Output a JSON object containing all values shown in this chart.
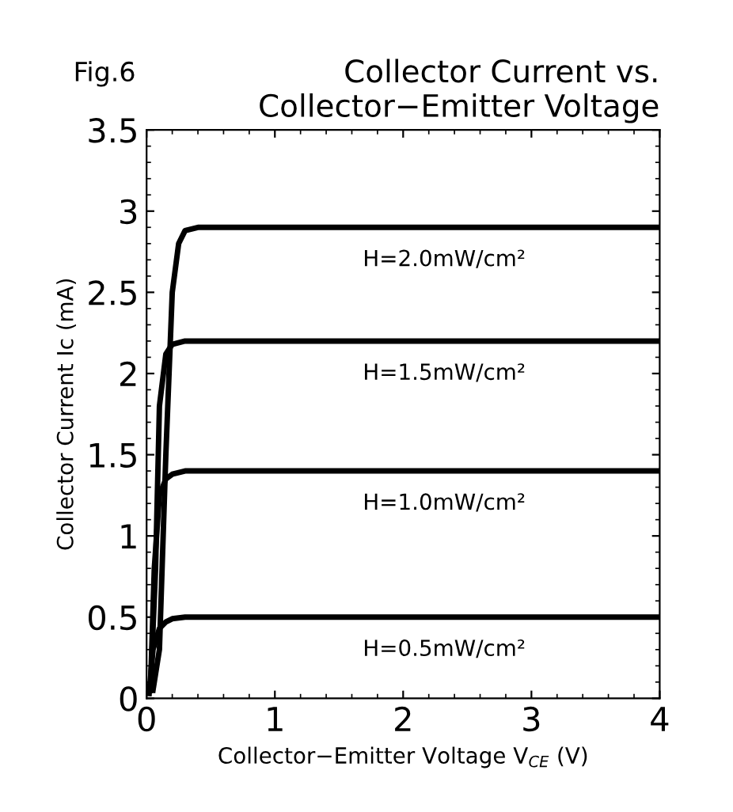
{
  "chart_data": {
    "type": "line",
    "title": "Collector Current vs.\nCollector−Emitter Voltage",
    "xlabel": "Collector−Emitter Voltage V$_{CE}$ (V)",
    "ylabel": "Collector Current Ic (mA)",
    "annotations": [
      "Fig.6"
    ],
    "series": [
      {
        "name": "H=2.0mW/cm²",
        "color": "#000000",
        "x": [
          0.05,
          0.1,
          0.15,
          0.2,
          0.25,
          0.3,
          0.4,
          4
        ],
        "values": [
          0.05,
          0.3,
          1.5,
          2.5,
          2.8,
          2.88,
          2.9,
          2.9
        ]
      },
      {
        "name": "H=1.5mW/cm²",
        "color": "#000000",
        "x": [
          0.03,
          0.07,
          0.1,
          0.15,
          0.2,
          0.3,
          4
        ],
        "values": [
          0.05,
          0.8,
          1.8,
          2.12,
          2.18,
          2.2,
          2.2
        ]
      },
      {
        "name": "H=1.0mW/cm²",
        "color": "#000000",
        "x": [
          0.03,
          0.06,
          0.1,
          0.15,
          0.2,
          0.3,
          4
        ],
        "values": [
          0.05,
          0.8,
          1.25,
          1.35,
          1.38,
          1.4,
          1.4
        ]
      },
      {
        "name": "H=0.5mW/cm²",
        "color": "#000000",
        "x": [
          0.02,
          0.05,
          0.1,
          0.15,
          0.2,
          0.3,
          4
        ],
        "values": [
          0.03,
          0.3,
          0.43,
          0.47,
          0.49,
          0.5,
          0.5
        ]
      }
    ],
    "xlim": [
      0,
      4
    ],
    "ylim": [
      0,
      3.5
    ],
    "xticks": [
      0,
      1,
      2,
      3,
      4
    ],
    "yticks": [
      0,
      0.5,
      1,
      1.5,
      2,
      2.5,
      3,
      3.5
    ],
    "grid": false,
    "legend": false,
    "marker": "none",
    "line_style": "solid"
  }
}
